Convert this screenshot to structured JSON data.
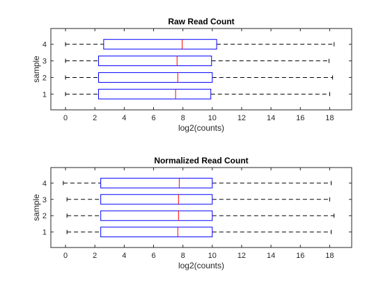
{
  "chart_data": [
    {
      "type": "boxplot",
      "title": "Raw Read Count",
      "xlabel": "log2(counts)",
      "ylabel": "sample",
      "xlim": [
        -1,
        19.5
      ],
      "xticks": [
        0,
        2,
        4,
        6,
        8,
        10,
        12,
        14,
        16,
        18
      ],
      "categories": [
        "1",
        "2",
        "3",
        "4"
      ],
      "boxes": [
        {
          "sample": "1",
          "min": 0.0,
          "q1": 2.25,
          "median": 7.5,
          "q3": 9.9,
          "max": 18.0
        },
        {
          "sample": "2",
          "min": 0.0,
          "q1": 2.25,
          "median": 7.65,
          "q3": 10.0,
          "max": 18.2
        },
        {
          "sample": "3",
          "min": 0.0,
          "q1": 2.25,
          "median": 7.6,
          "q3": 9.95,
          "max": 17.95
        },
        {
          "sample": "4",
          "min": 0.0,
          "q1": 2.6,
          "median": 7.95,
          "q3": 10.3,
          "max": 18.3
        }
      ],
      "grid": false
    },
    {
      "type": "boxplot",
      "title": "Normalized Read Count",
      "xlabel": "log2(counts)",
      "ylabel": "sample",
      "xlim": [
        -1,
        19.5
      ],
      "xticks": [
        0,
        2,
        4,
        6,
        8,
        10,
        12,
        14,
        16,
        18
      ],
      "categories": [
        "1",
        "2",
        "3",
        "4"
      ],
      "boxes": [
        {
          "sample": "1",
          "min": 0.1,
          "q1": 2.4,
          "median": 7.65,
          "q3": 10.0,
          "max": 18.1
        },
        {
          "sample": "2",
          "min": 0.1,
          "q1": 2.4,
          "median": 7.7,
          "q3": 10.0,
          "max": 18.3
        },
        {
          "sample": "3",
          "min": 0.1,
          "q1": 2.4,
          "median": 7.7,
          "q3": 10.0,
          "max": 18.0
        },
        {
          "sample": "4",
          "min": -0.15,
          "q1": 2.4,
          "median": 7.75,
          "q3": 10.0,
          "max": 18.1
        }
      ],
      "grid": false
    }
  ],
  "colors": {
    "box": "#0000ff",
    "median": "#ff0000",
    "whisker": "#000000",
    "axis": "#262626"
  }
}
